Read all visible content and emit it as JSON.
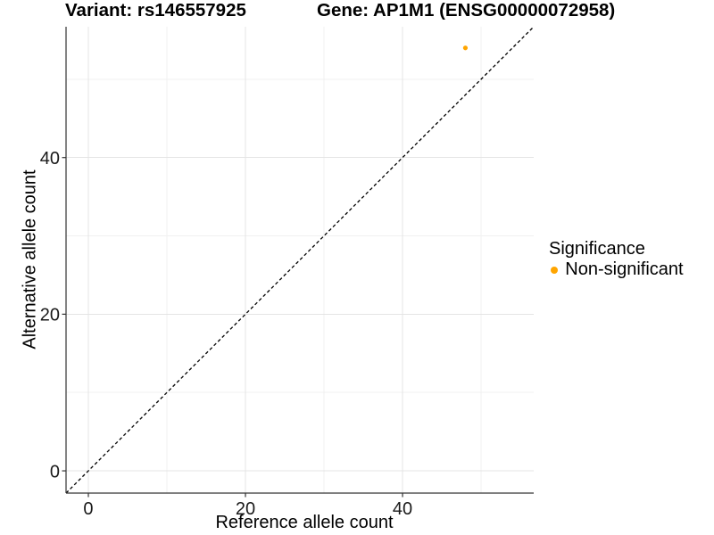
{
  "titles": {
    "variant": "Variant: rs146557925",
    "gene": "Gene: AP1M1 (ENSG00000072958)"
  },
  "axes": {
    "x_title": "Reference allele count",
    "y_title": "Alternative allele count"
  },
  "legend": {
    "title": "Significance",
    "items": [
      {
        "label": "Non-significant",
        "color": "#FFA500"
      }
    ]
  },
  "chart_data": {
    "type": "scatter",
    "title": "Variant: rs146557925    Gene: AP1M1 (ENSG00000072958)",
    "xlabel": "Reference allele count",
    "ylabel": "Alternative allele count",
    "xlim": [
      -2.84,
      56.7
    ],
    "ylim": [
      -2.84,
      56.7
    ],
    "x_ticks": [
      0,
      20,
      40
    ],
    "y_ticks": [
      0,
      20,
      40
    ],
    "x_minor_ticks": [
      10,
      30,
      50
    ],
    "y_minor_ticks": [
      10,
      30,
      50
    ],
    "grid": true,
    "legend_position": "right",
    "legend_title": "Significance",
    "series": [
      {
        "name": "Non-significant",
        "color": "#FFA500",
        "points": [
          {
            "x": 48,
            "y": 54
          }
        ]
      }
    ],
    "reference_line": {
      "type": "identity",
      "style": "dashed",
      "color": "#000000"
    }
  },
  "colors": {
    "point": "#FFA500",
    "grid_major": "#e4e4e4",
    "grid_minor": "#f1f1f1",
    "axis_line": "#333333",
    "tick_label": "#1a1a1a"
  }
}
